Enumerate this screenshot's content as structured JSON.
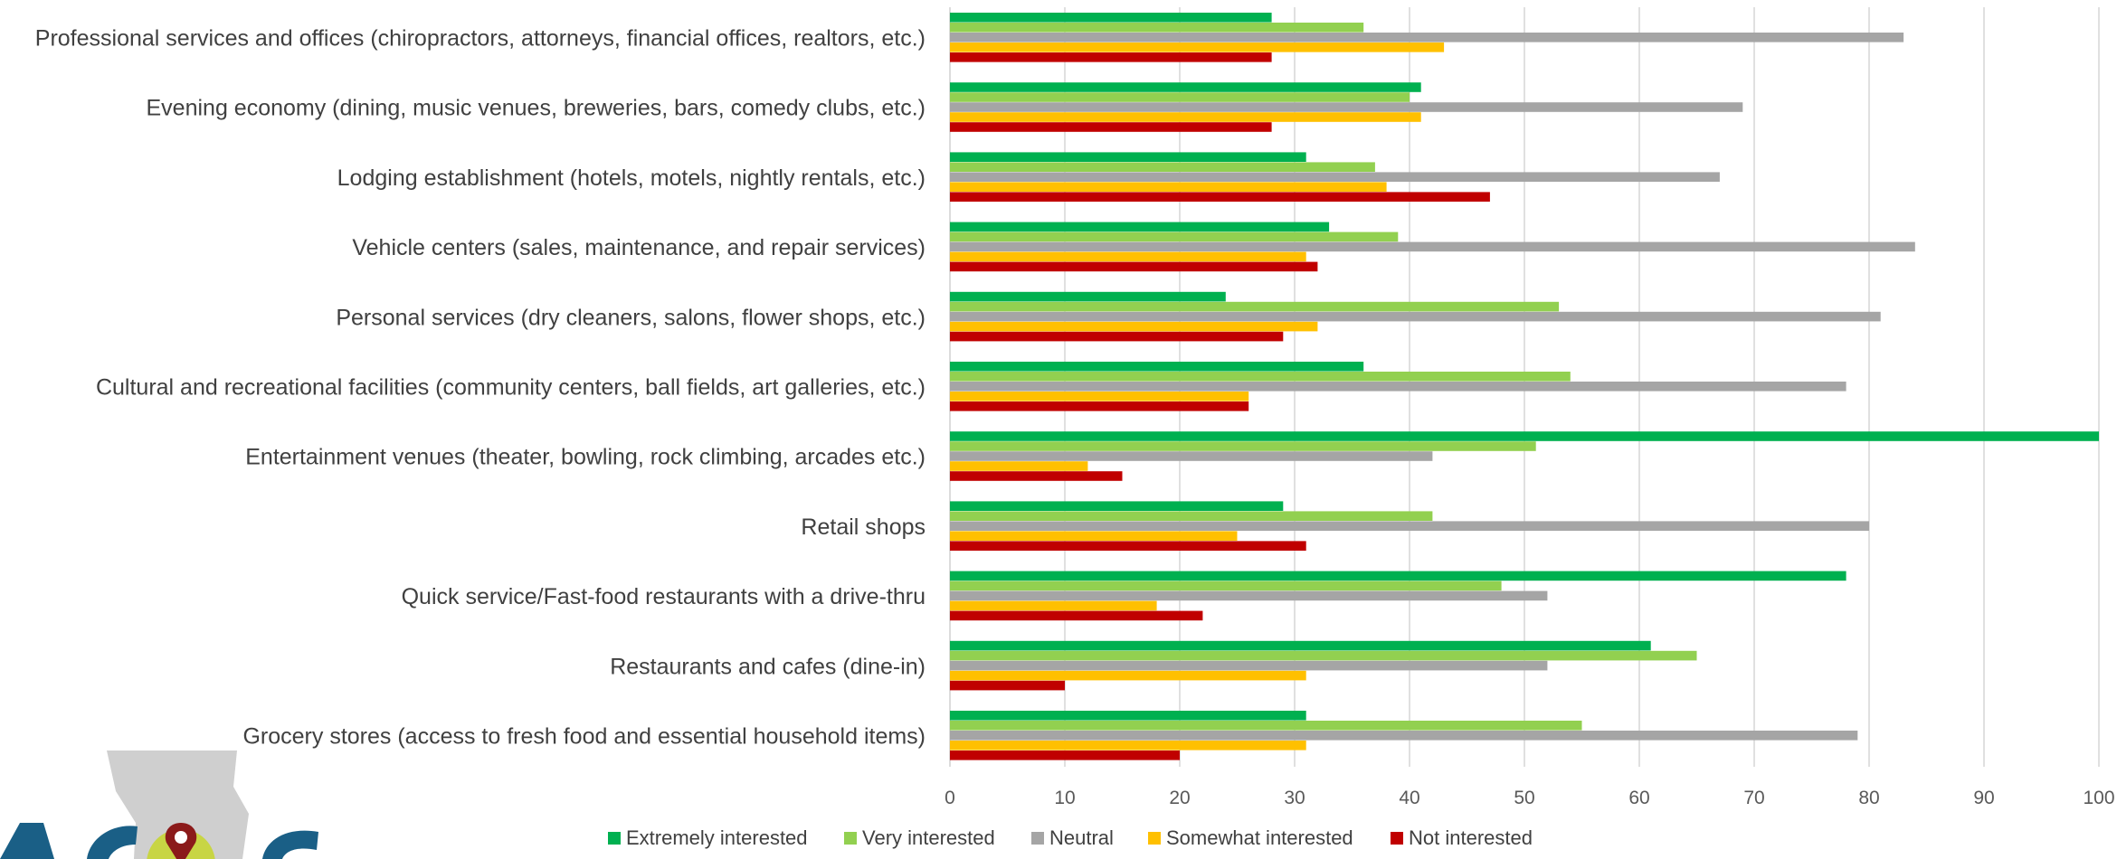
{
  "chart_data": {
    "type": "bar",
    "orientation": "horizontal",
    "categories": [
      "Professional services and offices (chiropractors, attorneys, financial offices, realtors, etc.)",
      "Evening economy (dining, music venues, breweries, bars, comedy clubs, etc.)",
      "Lodging establishment (hotels, motels, nightly rentals, etc.)",
      "Vehicle centers (sales, maintenance, and repair services)",
      "Personal services (dry cleaners, salons, flower shops, etc.)",
      "Cultural and recreational facilities (community centers, ball fields, art galleries, etc.)",
      "Entertainment venues (theater, bowling, rock climbing, arcades etc.)",
      "Retail shops",
      "Quick service/Fast-food restaurants with a drive-thru",
      "Restaurants and cafes (dine-in)",
      "Grocery stores (access to fresh food and essential household items)"
    ],
    "series": [
      {
        "name": "Extremely interested",
        "color": "#00b050",
        "values": [
          28,
          41,
          31,
          33,
          24,
          36,
          100,
          29,
          78,
          61,
          31
        ]
      },
      {
        "name": "Very interested",
        "color": "#92d050",
        "values": [
          36,
          40,
          37,
          39,
          53,
          54,
          51,
          42,
          48,
          65,
          55
        ]
      },
      {
        "name": "Neutral",
        "color": "#a5a5a5",
        "values": [
          83,
          69,
          67,
          84,
          81,
          78,
          42,
          80,
          52,
          52,
          79
        ]
      },
      {
        "name": "Somewhat interested",
        "color": "#ffc000",
        "values": [
          43,
          41,
          38,
          31,
          32,
          26,
          12,
          25,
          18,
          31,
          31
        ]
      },
      {
        "name": "Not interested",
        "color": "#c00000",
        "values": [
          28,
          28,
          47,
          32,
          29,
          26,
          15,
          31,
          22,
          10,
          20
        ]
      }
    ],
    "x_ticks": [
      "0",
      "10",
      "20",
      "30",
      "40",
      "50",
      "60",
      "70",
      "80",
      "90",
      "100"
    ],
    "xlim": [
      0,
      100
    ],
    "grid": "vertical",
    "legend_position": "bottom"
  },
  "logo": {
    "colors": {
      "map": "#cfcfcf",
      "letters": "#1a5f86",
      "circle": "#c8d544",
      "pin": "#8b1a1a"
    }
  }
}
